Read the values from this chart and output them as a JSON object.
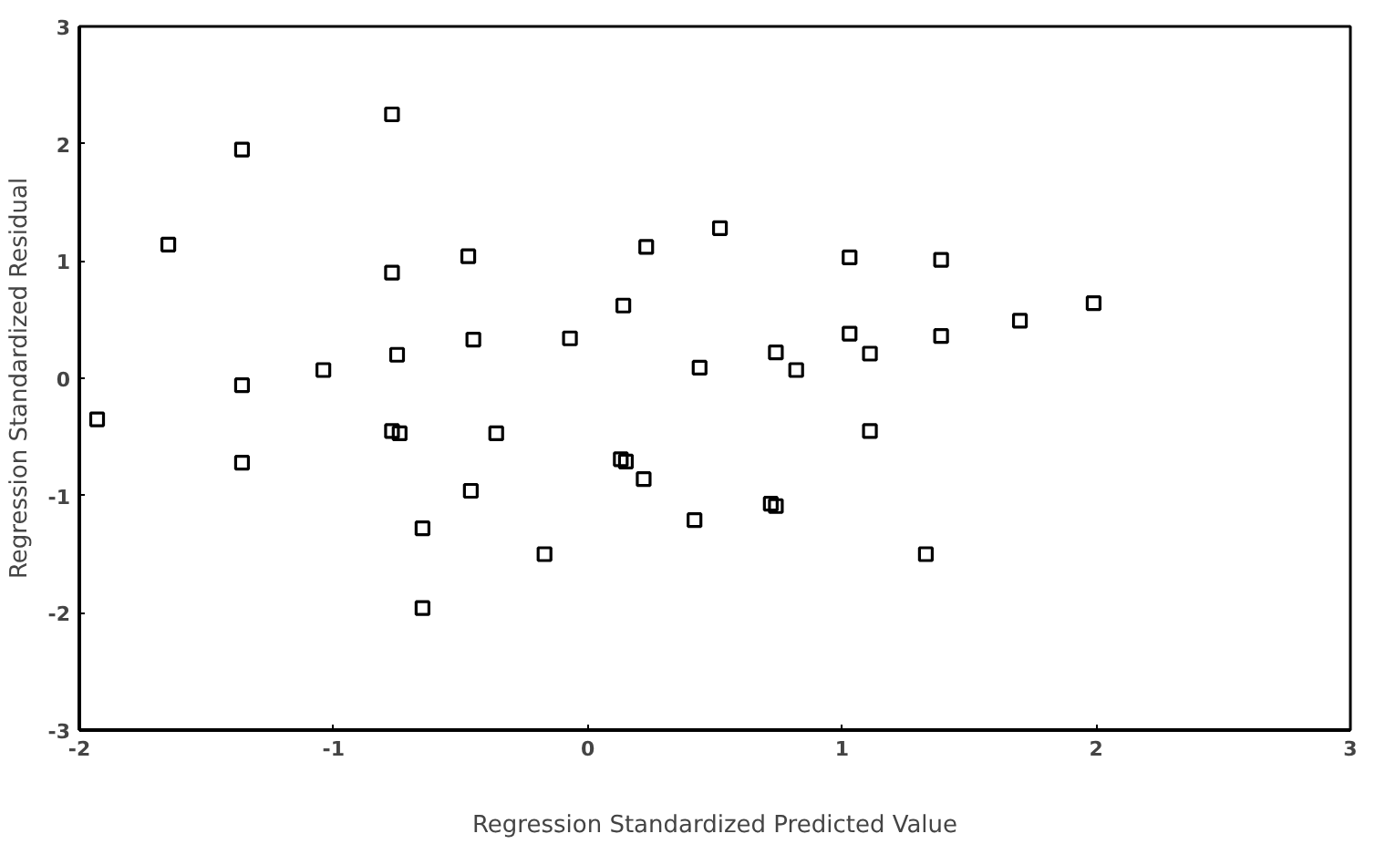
{
  "chart_data": {
    "type": "scatter",
    "xlabel": "Regression Standardized Predicted Value",
    "ylabel": "Regression Standardized Residual",
    "x": [
      -1.93,
      -1.36,
      -1.65,
      -0.77,
      -0.77,
      -0.47,
      -0.75,
      -0.45,
      -0.07,
      0.14,
      0.23,
      -1.36,
      -1.04,
      -0.77,
      -0.74,
      -0.36,
      0.52,
      1.03,
      1.39,
      1.99,
      1.7,
      1.03,
      1.11,
      1.39,
      0.74,
      0.44,
      0.82,
      1.11,
      -1.36,
      -0.46,
      -0.65,
      -0.17,
      -0.65,
      0.13,
      0.15,
      0.22,
      0.42,
      0.72,
      0.74,
      1.33
    ],
    "series": [
      {
        "color": "#000000",
        "values": [
          -0.35,
          1.95,
          1.14,
          2.25,
          0.9,
          1.04,
          0.2,
          0.33,
          0.34,
          0.62,
          1.12,
          -0.06,
          0.07,
          -0.45,
          -0.47,
          -0.47,
          1.28,
          1.03,
          1.01,
          0.64,
          0.49,
          0.38,
          0.21,
          0.36,
          0.22,
          0.09,
          0.07,
          -0.45,
          -0.72,
          -0.96,
          -1.28,
          -1.5,
          -1.96,
          -0.69,
          -0.71,
          -0.86,
          -1.21,
          -1.07,
          -1.09,
          -1.5
        ]
      }
    ],
    "xlim": [
      -2,
      3
    ],
    "ylim": [
      -3,
      3
    ],
    "xticks": [
      -2,
      -1,
      0,
      1,
      2,
      3
    ],
    "yticks": [
      -3,
      -2,
      -1,
      0,
      1,
      2,
      3
    ],
    "marker": "square",
    "grid": false
  }
}
